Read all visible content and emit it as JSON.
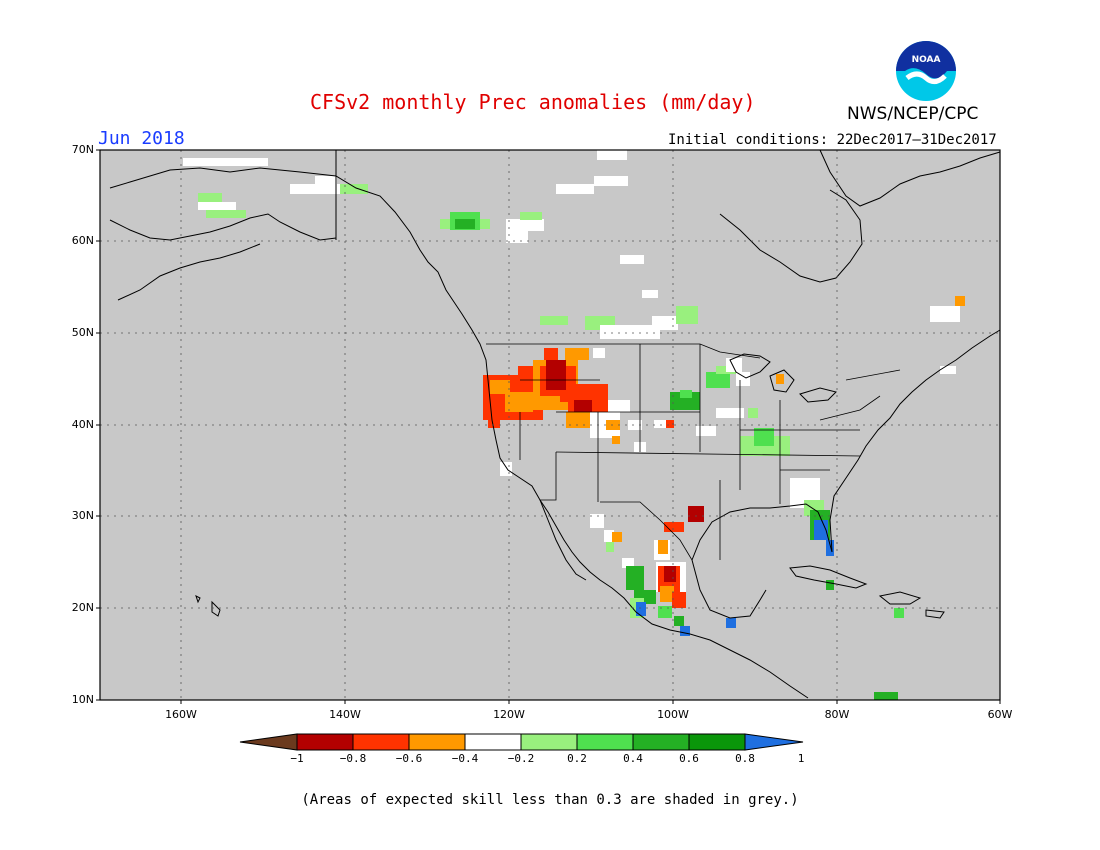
{
  "header": {
    "title": "CFSv2 monthly Prec anomalies (mm/day)",
    "agency": "NWS/NCEP/CPC",
    "logo_text": "NOAA"
  },
  "map_panel": {
    "month": "Jun 2018",
    "initial_conditions": "Initial conditions: 22Dec2017–31Dec2017",
    "lat_labels": [
      "70N",
      "60N",
      "50N",
      "40N",
      "30N",
      "20N",
      "10N"
    ],
    "lon_labels": [
      "160W",
      "140W",
      "120W",
      "100W",
      "80W",
      "60W"
    ],
    "ocean_color": "#c8c8c8",
    "grid_style": "dotted"
  },
  "colorbar": {
    "labels": [
      "−1",
      "−0.8",
      "−0.6",
      "−0.4",
      "−0.2",
      "0.2",
      "0.4",
      "0.6",
      "0.8",
      "1"
    ],
    "colors": [
      "#6b3a1e",
      "#b30000",
      "#ff3300",
      "#ff9900",
      "#ffffff",
      "#99f07e",
      "#4fe04f",
      "#24b024",
      "#0a960a",
      "#1f6fe0"
    ]
  },
  "footnote": "(Areas of expected skill less than 0.3 are shaded in grey.)"
}
